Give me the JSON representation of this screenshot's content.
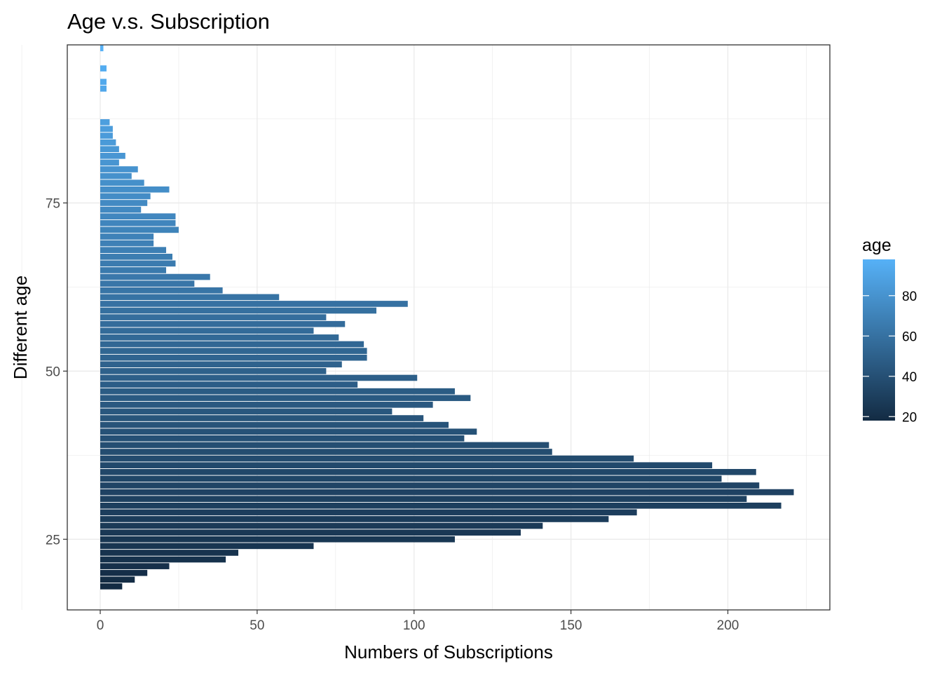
{
  "chart_data": {
    "type": "bar",
    "orientation": "horizontal",
    "title": "Age v.s. Subscription",
    "xlabel": "Numbers of Subscriptions",
    "ylabel": "Different age",
    "xlim": [
      -10.5,
      232.5
    ],
    "ylim": [
      14.5,
      98.5
    ],
    "x_ticks": [
      0,
      50,
      100,
      150,
      200
    ],
    "y_ticks": [
      25,
      50,
      75
    ],
    "grid": true,
    "legend": {
      "title": "age",
      "position": "right",
      "type": "colorbar",
      "range": [
        18,
        98
      ],
      "ticks": [
        20,
        40,
        60,
        80
      ],
      "color_low": "#132B43",
      "color_high": "#56B1F7"
    },
    "ages": [
      18,
      19,
      20,
      21,
      22,
      23,
      24,
      25,
      26,
      27,
      28,
      29,
      30,
      31,
      32,
      33,
      34,
      35,
      36,
      37,
      38,
      39,
      40,
      41,
      42,
      43,
      44,
      45,
      46,
      47,
      48,
      49,
      50,
      51,
      52,
      53,
      54,
      55,
      56,
      57,
      58,
      59,
      60,
      61,
      62,
      63,
      64,
      65,
      66,
      67,
      68,
      69,
      70,
      71,
      72,
      73,
      74,
      75,
      76,
      77,
      78,
      79,
      80,
      81,
      82,
      83,
      84,
      85,
      86,
      87,
      88,
      89,
      90,
      92,
      93,
      95,
      98
    ],
    "values": [
      7,
      11,
      15,
      22,
      40,
      44,
      68,
      113,
      134,
      141,
      162,
      171,
      217,
      206,
      221,
      210,
      198,
      209,
      195,
      170,
      144,
      143,
      116,
      120,
      111,
      103,
      93,
      106,
      118,
      113,
      82,
      101,
      72,
      77,
      85,
      85,
      84,
      76,
      68,
      78,
      72,
      88,
      98,
      57,
      39,
      30,
      35,
      21,
      24,
      23,
      21,
      17,
      17,
      25,
      24,
      24,
      13,
      15,
      16,
      22,
      14,
      10,
      12,
      6,
      8,
      6,
      5,
      4,
      4,
      3,
      0,
      0,
      0,
      2,
      2,
      2,
      1
    ]
  }
}
